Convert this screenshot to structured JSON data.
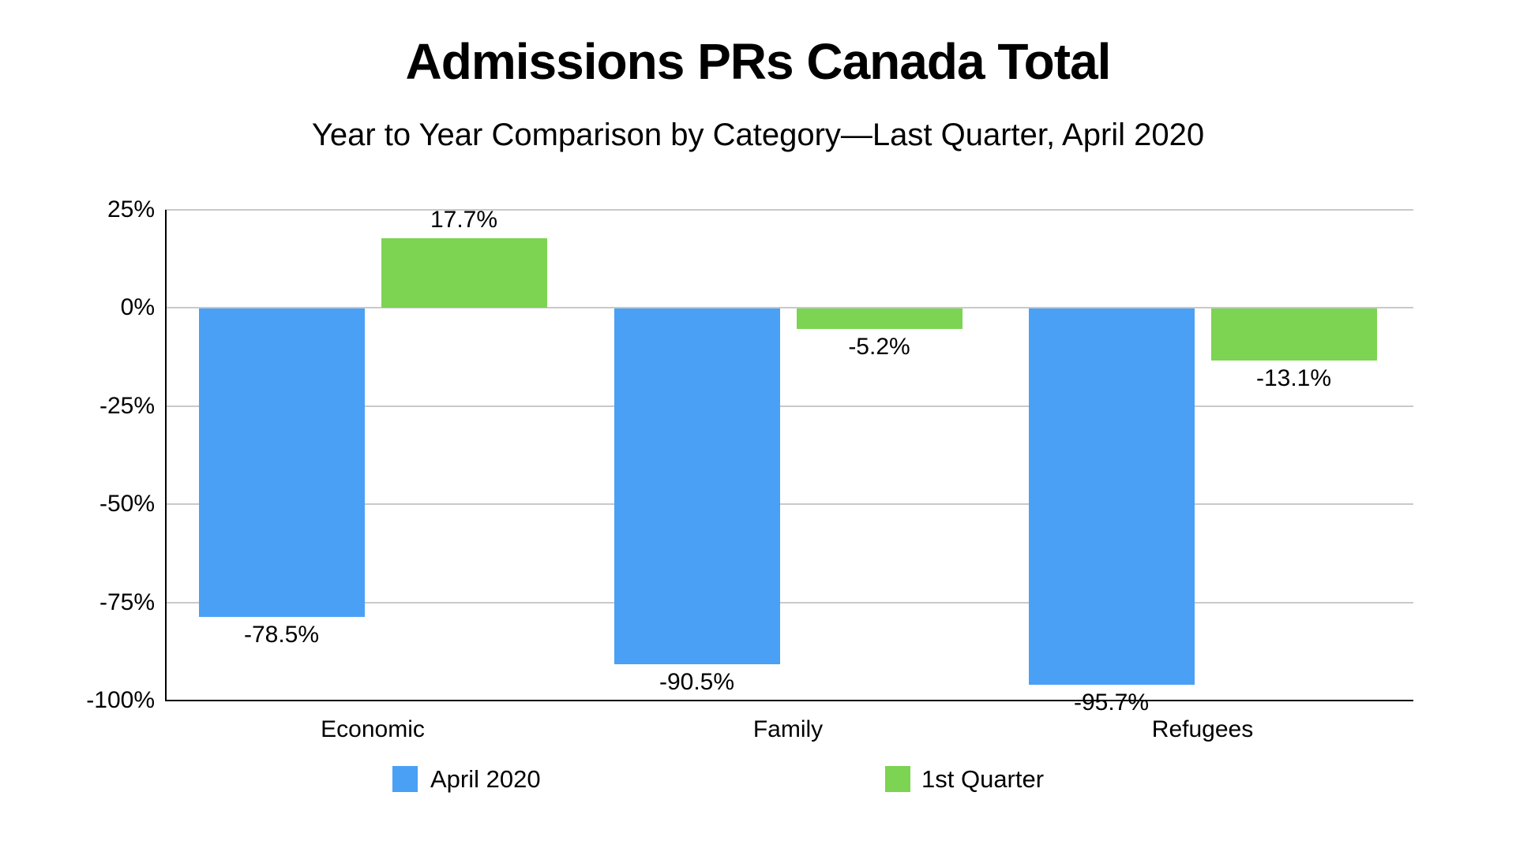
{
  "title": "Admissions PRs Canada Total",
  "subtitle": "Year to Year Comparison by Category—Last Quarter, April 2020",
  "colors": {
    "series_april_2020": "#4AA0F4",
    "series_1st_quarter": "#7DD352",
    "gridline": "#C9C9C9",
    "axis": "#000000",
    "text": "#000000",
    "background": "#FFFFFF"
  },
  "chart_data": {
    "type": "bar",
    "title": "Admissions PRs Canada Total",
    "subtitle": "Year to Year Comparison by Category—Last Quarter, April 2020",
    "categories": [
      "Economic",
      "Family",
      "Refugees"
    ],
    "series": [
      {
        "name": "April 2020",
        "color": "#4AA0F4",
        "values": [
          -78.5,
          -90.5,
          -95.7
        ],
        "labels": [
          "-78.5%",
          "-90.5%",
          "-95.7%"
        ]
      },
      {
        "name": "1st Quarter",
        "color": "#7DD352",
        "values": [
          17.7,
          -5.2,
          -13.1
        ],
        "labels": [
          "17.7%",
          "-5.2%",
          "-13.1%"
        ]
      }
    ],
    "ylim": [
      -100,
      25
    ],
    "ytick_values": [
      25,
      0,
      -25,
      -50,
      -75,
      -100
    ],
    "ytick_labels": [
      "25%",
      "0%",
      "-25%",
      "-50%",
      "-75%",
      "-100%"
    ],
    "unit": "%",
    "grid": true,
    "legend_position": "bottom"
  },
  "legend": {
    "items": [
      {
        "label": "April 2020",
        "color": "#4AA0F4"
      },
      {
        "label": "1st Quarter",
        "color": "#7DD352"
      }
    ]
  }
}
